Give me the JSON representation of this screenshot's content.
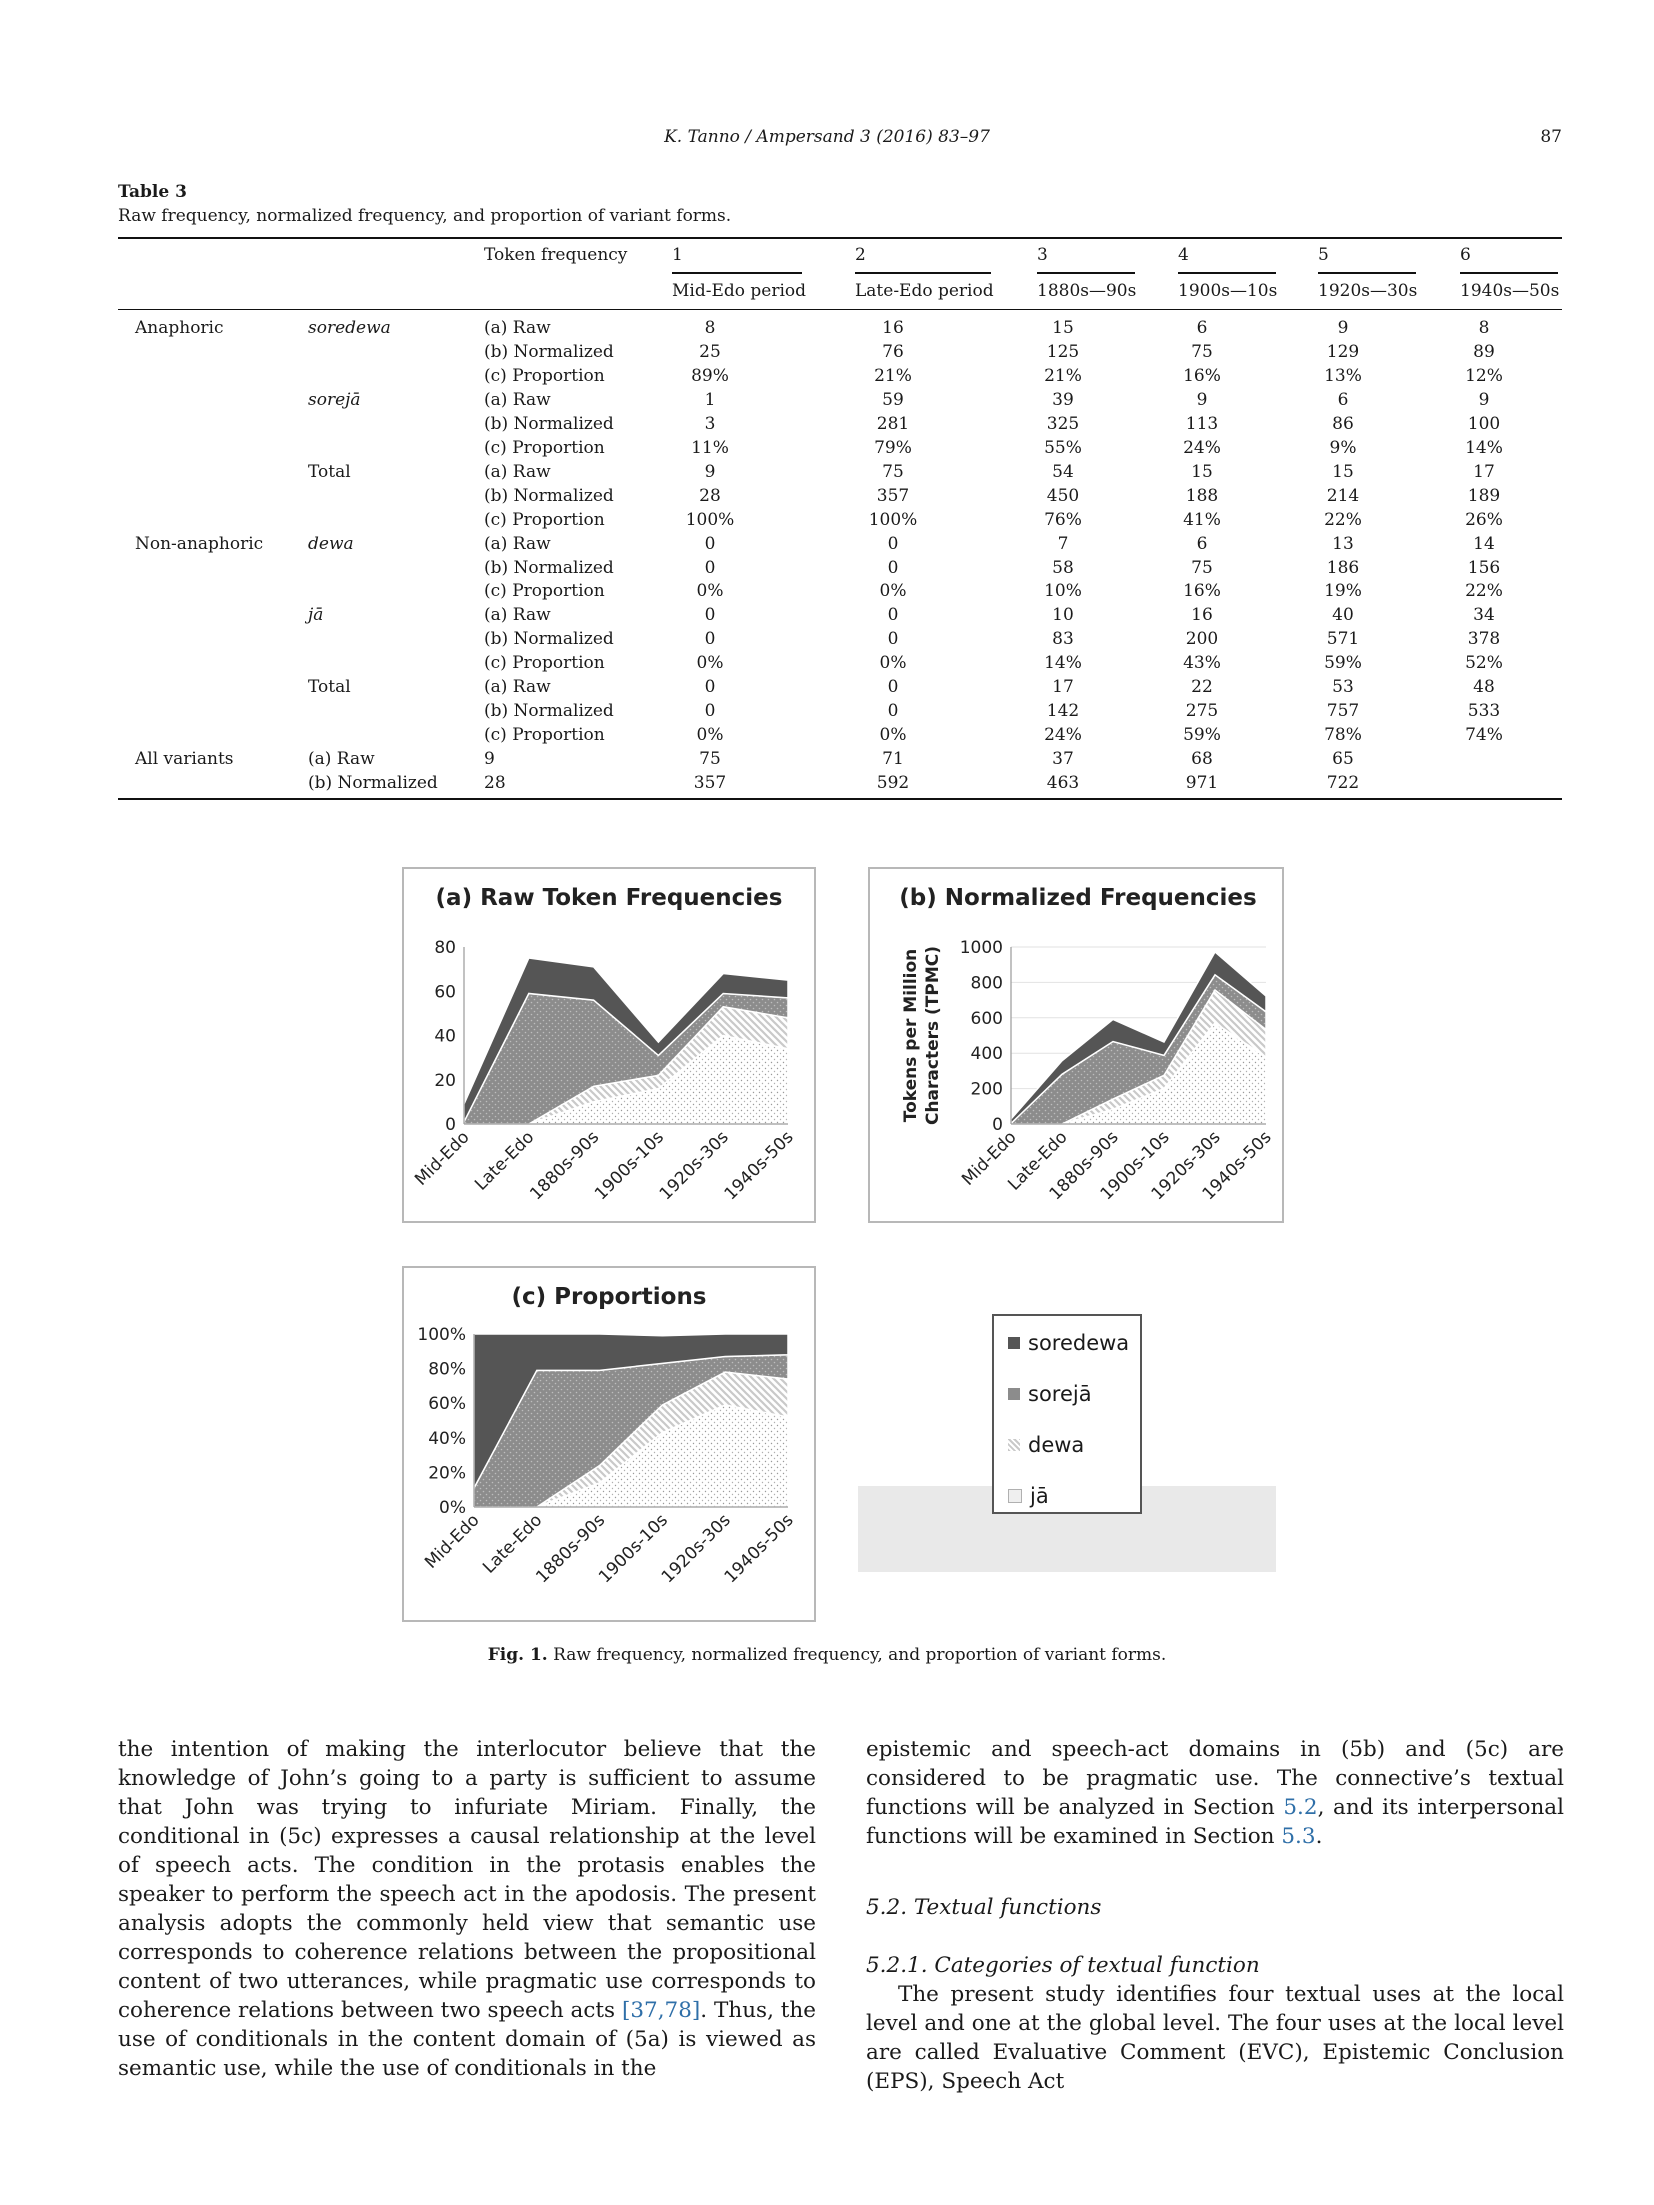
{
  "running_head": {
    "journal": "K. Tanno / Ampersand 3 (2016) 83–97",
    "page_number": "87"
  },
  "table": {
    "name": "Table 3",
    "caption": "Raw frequency, normalized frequency, and proportion of variant forms.",
    "header_label": "Token frequency",
    "periods": [
      {
        "num": "1",
        "label": "Mid-Edo period"
      },
      {
        "num": "2",
        "label": "Late-Edo period"
      },
      {
        "num": "3",
        "label": "1880s—90s"
      },
      {
        "num": "4",
        "label": "1900s—10s"
      },
      {
        "num": "5",
        "label": "1920s—30s"
      },
      {
        "num": "6",
        "label": "1940s—50s"
      }
    ],
    "rows": [
      {
        "g": "Anaphoric",
        "f": "soredewa",
        "fi": true,
        "m": "(a) Raw",
        "v": [
          "8",
          "16",
          "15",
          "6",
          "9",
          "8"
        ]
      },
      {
        "g": "",
        "f": "",
        "m": "(b) Normalized",
        "v": [
          "25",
          "76",
          "125",
          "75",
          "129",
          "89"
        ]
      },
      {
        "g": "",
        "f": "",
        "m": "(c) Proportion",
        "v": [
          "89%",
          "21%",
          "21%",
          "16%",
          "13%",
          "12%"
        ]
      },
      {
        "g": "",
        "f": "sorejā",
        "fi": true,
        "m": "(a) Raw",
        "v": [
          "1",
          "59",
          "39",
          "9",
          "6",
          "9"
        ]
      },
      {
        "g": "",
        "f": "",
        "m": "(b) Normalized",
        "v": [
          "3",
          "281",
          "325",
          "113",
          "86",
          "100"
        ]
      },
      {
        "g": "",
        "f": "",
        "m": "(c) Proportion",
        "v": [
          "11%",
          "79%",
          "55%",
          "24%",
          "9%",
          "14%"
        ]
      },
      {
        "g": "",
        "f": "Total",
        "m": "(a) Raw",
        "v": [
          "9",
          "75",
          "54",
          "15",
          "15",
          "17"
        ]
      },
      {
        "g": "",
        "f": "",
        "m": "(b) Normalized",
        "v": [
          "28",
          "357",
          "450",
          "188",
          "214",
          "189"
        ]
      },
      {
        "g": "",
        "f": "",
        "m": "(c) Proportion",
        "v": [
          "100%",
          "100%",
          "76%",
          "41%",
          "22%",
          "26%"
        ]
      },
      {
        "g": "Non-anaphoric",
        "f": "dewa",
        "fi": true,
        "m": "(a) Raw",
        "v": [
          "0",
          "0",
          "7",
          "6",
          "13",
          "14"
        ]
      },
      {
        "g": "",
        "f": "",
        "m": "(b) Normalized",
        "v": [
          "0",
          "0",
          "58",
          "75",
          "186",
          "156"
        ]
      },
      {
        "g": "",
        "f": "",
        "m": "(c) Proportion",
        "v": [
          "0%",
          "0%",
          "10%",
          "16%",
          "19%",
          "22%"
        ]
      },
      {
        "g": "",
        "f": "jā",
        "fi": true,
        "m": "(a) Raw",
        "v": [
          "0",
          "0",
          "10",
          "16",
          "40",
          "34"
        ]
      },
      {
        "g": "",
        "f": "",
        "m": "(b) Normalized",
        "v": [
          "0",
          "0",
          "83",
          "200",
          "571",
          "378"
        ]
      },
      {
        "g": "",
        "f": "",
        "m": "(c) Proportion",
        "v": [
          "0%",
          "0%",
          "14%",
          "43%",
          "59%",
          "52%"
        ]
      },
      {
        "g": "",
        "f": "Total",
        "m": "(a) Raw",
        "v": [
          "0",
          "0",
          "17",
          "22",
          "53",
          "48"
        ]
      },
      {
        "g": "",
        "f": "",
        "m": "(b) Normalized",
        "v": [
          "0",
          "0",
          "142",
          "275",
          "757",
          "533"
        ]
      },
      {
        "g": "",
        "f": "",
        "m": "(c) Proportion",
        "v": [
          "0%",
          "0%",
          "24%",
          "59%",
          "78%",
          "74%"
        ]
      }
    ],
    "all_variants": {
      "label": "All variants",
      "rows": [
        {
          "m": "(a) Raw",
          "v": [
            "9",
            "75",
            "71",
            "37",
            "68",
            "65"
          ]
        },
        {
          "m": "(b) Normalized",
          "v": [
            "28",
            "357",
            "592",
            "463",
            "971",
            "722"
          ]
        }
      ]
    }
  },
  "colors": {
    "soredewa": "#555555",
    "soreja": "#8c8c8c",
    "dewa": "#c9c9c9",
    "ja": "#efefef"
  },
  "chart_data": [
    {
      "type": "area",
      "stacked": true,
      "title": "(a) Raw Token Frequencies",
      "categories": [
        "Mid-Edo",
        "Late-Edo",
        "1880s-90s",
        "1900s-10s",
        "1920s-30s",
        "1940s-50s"
      ],
      "series": [
        {
          "name": "jā",
          "values": [
            0,
            0,
            10,
            16,
            40,
            34
          ]
        },
        {
          "name": "dewa",
          "values": [
            0,
            0,
            7,
            6,
            13,
            14
          ]
        },
        {
          "name": "sorejā",
          "values": [
            1,
            59,
            39,
            9,
            6,
            9
          ]
        },
        {
          "name": "soredewa",
          "values": [
            8,
            16,
            15,
            6,
            9,
            8
          ]
        }
      ],
      "ylabel": "",
      "ylim": [
        0,
        80
      ],
      "yticks": [
        "0",
        "20",
        "40",
        "60",
        "80"
      ]
    },
    {
      "type": "area",
      "stacked": true,
      "title": "(b) Normalized Frequencies",
      "categories": [
        "Mid-Edo",
        "Late-Edo",
        "1880s-90s",
        "1900s-10s",
        "1920s-30s",
        "1940s-50s"
      ],
      "series": [
        {
          "name": "jā",
          "values": [
            0,
            0,
            83,
            200,
            571,
            378
          ]
        },
        {
          "name": "dewa",
          "values": [
            0,
            0,
            58,
            75,
            186,
            156
          ]
        },
        {
          "name": "sorejā",
          "values": [
            3,
            281,
            325,
            113,
            86,
            100
          ]
        },
        {
          "name": "soredewa",
          "values": [
            25,
            76,
            125,
            75,
            129,
            89
          ]
        }
      ],
      "ylabel": "Tokens per Million Characters (TPMC)",
      "ylabel_lines": [
        "Tokens per Million",
        "Characters (TPMC)"
      ],
      "ylim": [
        0,
        1000
      ],
      "yticks": [
        "0",
        "200",
        "400",
        "600",
        "800",
        "1000"
      ]
    },
    {
      "type": "area",
      "stacked": true,
      "title": "(c) Proportions",
      "categories": [
        "Mid-Edo",
        "Late-Edo",
        "1880s-90s",
        "1900s-10s",
        "1920s-30s",
        "1940s-50s"
      ],
      "series": [
        {
          "name": "jā",
          "values": [
            0,
            0,
            14,
            43,
            59,
            52
          ]
        },
        {
          "name": "dewa",
          "values": [
            0,
            0,
            10,
            16,
            19,
            22
          ]
        },
        {
          "name": "sorejā",
          "values": [
            11,
            79,
            55,
            24,
            9,
            14
          ]
        },
        {
          "name": "soredewa",
          "values": [
            89,
            21,
            21,
            16,
            13,
            12
          ]
        }
      ],
      "ylabel": "",
      "ylim": [
        0,
        100
      ],
      "yticks": [
        "0%",
        "20%",
        "40%",
        "60%",
        "80%",
        "100%"
      ]
    }
  ],
  "legend": {
    "items": [
      "soredewa",
      "sorejā",
      "dewa",
      "jā"
    ]
  },
  "figure_caption": {
    "label": "Fig. 1.",
    "text": "Raw frequency, normalized frequency, and proportion of variant forms."
  },
  "body_left": {
    "text1": "the intention of making the interlocutor believe that the knowledge of John’s going to a party is sufficient to assume that John was trying to infuriate Miriam. Finally, the conditional in (5c) expresses a causal relationship at the level of speech acts. The condition in the protasis enables the speaker to perform the speech act in the apodosis. The present analysis adopts the commonly held view that semantic use corresponds to coherence relations between the propositional content of two utterances, while pragmatic use corresponds to coherence relations between two speech acts ",
    "ref": "[37,78]",
    "text2": ". Thus, the use of conditionals in the content domain of (5a) is viewed as semantic use, while the use of conditionals in the"
  },
  "body_right": {
    "p1_a": "epistemic and speech-act domains in (5b) and (5c) are considered to be pragmatic use. The connective’s textual functions will be analyzed in Section ",
    "p1_ref1": "5.2",
    "p1_b": ", and its interpersonal functions will be examined in Section ",
    "p1_ref2": "5.3",
    "p1_c": ".",
    "h1": "5.2.  Textual functions",
    "h2": "5.2.1.  Categories of textual function",
    "p2": "The present study identifies four textual uses at the local level and one at the global level. The four uses at the local level are called Evaluative Comment (EVC), Epistemic Conclusion (EPS), Speech Act"
  }
}
